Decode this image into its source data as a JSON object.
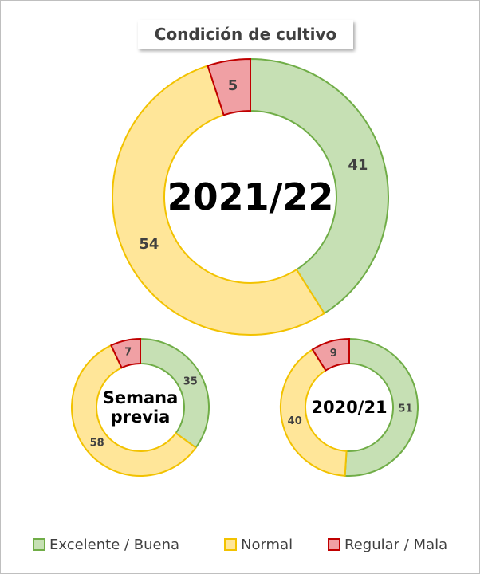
{
  "title": "Condición de cultivo",
  "chart_data": [
    {
      "type": "donut",
      "title": "2021/22",
      "categories": [
        "Excelente / Buena",
        "Normal",
        "Regular / Mala"
      ],
      "values": [
        41,
        54,
        5
      ],
      "colors": [
        "#c6e0b4",
        "#ffe699",
        "#f0a0a4"
      ],
      "edge_colors": [
        "#70ad47",
        "#f2c200",
        "#c00000"
      ]
    },
    {
      "type": "donut",
      "title": "Semana previa",
      "categories": [
        "Excelente / Buena",
        "Normal",
        "Regular / Mala"
      ],
      "values": [
        35,
        58,
        7
      ],
      "colors": [
        "#c6e0b4",
        "#ffe699",
        "#f0a0a4"
      ],
      "edge_colors": [
        "#70ad47",
        "#f2c200",
        "#c00000"
      ]
    },
    {
      "type": "donut",
      "title": "2020/21",
      "categories": [
        "Excelente / Buena",
        "Normal",
        "Regular / Mala"
      ],
      "values": [
        51,
        40,
        9
      ],
      "colors": [
        "#c6e0b4",
        "#ffe699",
        "#f0a0a4"
      ],
      "edge_colors": [
        "#70ad47",
        "#f2c200",
        "#c00000"
      ]
    }
  ]
}
